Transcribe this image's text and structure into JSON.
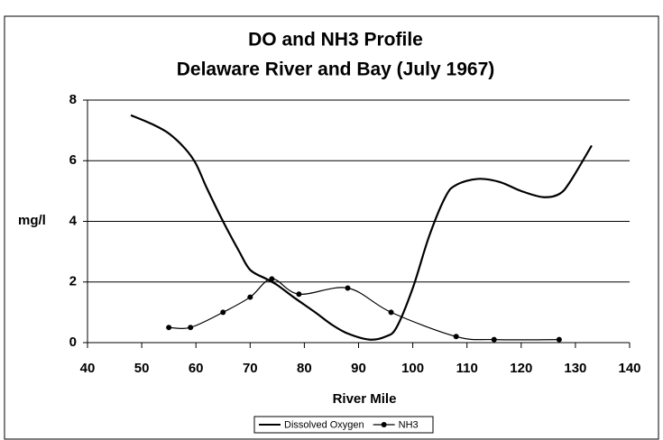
{
  "chart_data": {
    "type": "line",
    "title": [
      "DO and NH3 Profile",
      "Delaware River and Bay (July 1967)"
    ],
    "x_label": "River Mile",
    "y_label": "mg/l",
    "xlim": [
      40,
      140
    ],
    "xticks": [
      40,
      50,
      60,
      70,
      80,
      90,
      100,
      110,
      120,
      130,
      140
    ],
    "ylim": [
      0,
      8
    ],
    "yticks": [
      0,
      2,
      4,
      6,
      8
    ],
    "grid": true,
    "legend": "bottom",
    "series": [
      {
        "name": "Dissolved Oxygen",
        "color": "#000000",
        "marker": false,
        "x": [
          48,
          52,
          55,
          58,
          60,
          62,
          65,
          68,
          70,
          73,
          75,
          78,
          82,
          85,
          88,
          92,
          95,
          97,
          100,
          103,
          106,
          108,
          112,
          116,
          120,
          124,
          127,
          129,
          133
        ],
        "values": [
          7.5,
          7.2,
          6.9,
          6.4,
          5.9,
          5.1,
          4.0,
          3.0,
          2.4,
          2.1,
          1.9,
          1.5,
          1.0,
          0.6,
          0.3,
          0.1,
          0.2,
          0.5,
          1.8,
          3.5,
          4.8,
          5.2,
          5.4,
          5.3,
          5.0,
          4.8,
          4.9,
          5.3,
          6.5
        ]
      },
      {
        "name": "NH3",
        "color": "#000000",
        "marker": true,
        "x": [
          55,
          59,
          65,
          70,
          74,
          79,
          88,
          96,
          108,
          115,
          127
        ],
        "values": [
          0.5,
          0.5,
          1.0,
          1.5,
          2.1,
          1.6,
          1.8,
          1.0,
          0.2,
          0.1,
          0.1
        ]
      }
    ]
  }
}
